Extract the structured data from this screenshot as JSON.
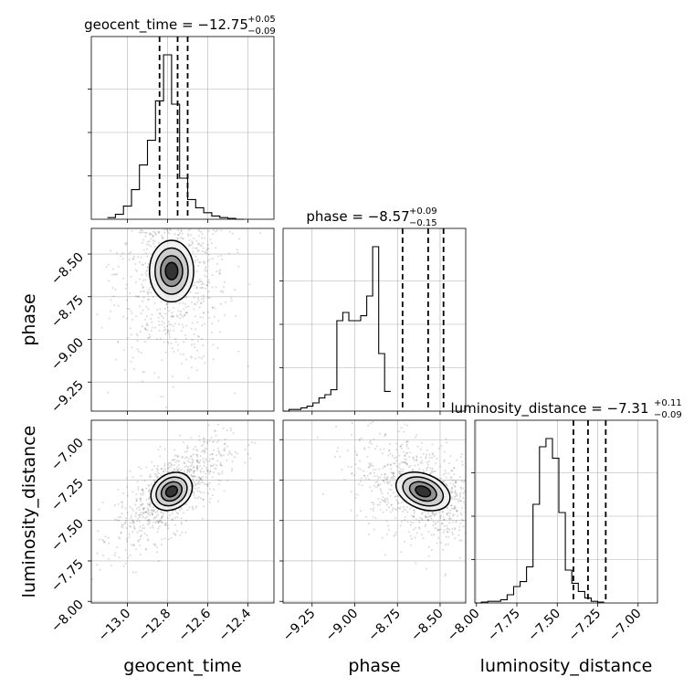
{
  "chart_data": {
    "type": "corner",
    "parameters": [
      "geocent_time",
      "phase",
      "luminosity_distance"
    ],
    "titles": [
      {
        "param": "geocent_time",
        "prefix": "geocent_time = −12.75",
        "plus": "+0.05",
        "minus": "−0.09"
      },
      {
        "param": "phase",
        "prefix": "phase = −8.57",
        "plus": "+0.09",
        "minus": "−0.15"
      },
      {
        "param": "luminosity_distance",
        "prefix": "luminosity_distance = −7.31",
        "plus": "+0.11",
        "minus": "−0.09"
      }
    ],
    "axes": {
      "geocent_time": {
        "range": [
          -13.18,
          -12.27
        ],
        "ticks": [
          -13.0,
          -12.8,
          -12.6,
          -12.4
        ],
        "tick_labels": [
          "−13.0",
          "−12.8",
          "−12.6",
          "−12.4"
        ]
      },
      "phase": {
        "range": [
          -9.42,
          -8.35
        ],
        "ticks": [
          -9.25,
          -9.0,
          -8.75,
          -8.5
        ],
        "tick_labels": [
          "−9.25",
          "−9.00",
          "−8.75",
          "−8.50"
        ]
      },
      "luminosity_distance": {
        "range": [
          -8.01,
          -6.88
        ],
        "ticks": [
          -8.0,
          -7.75,
          -7.5,
          -7.25,
          -7.0
        ],
        "tick_labels": [
          "−8.00",
          "−7.75",
          "−7.50",
          "−7.25",
          "−7.00"
        ]
      }
    },
    "histograms": {
      "geocent_time": {
        "edges_start": -13.1,
        "bin_width": 0.04,
        "counts": [
          0.01,
          0.03,
          0.08,
          0.18,
          0.33,
          0.48,
          0.72,
          1.0,
          0.7,
          0.25,
          0.12,
          0.07,
          0.04,
          0.02,
          0.01,
          0.005,
          0
        ],
        "quantiles": [
          -12.84,
          -12.75,
          -12.7
        ]
      },
      "phase": {
        "edges_start": -9.42,
        "bin_width": 0.035,
        "counts": [
          0,
          0.01,
          0.01,
          0.02,
          0.03,
          0.05,
          0.08,
          0.1,
          0.13,
          0.55,
          0.6,
          0.55,
          0.55,
          0.58,
          0.7,
          1.0,
          0.35,
          0.12
        ],
        "quantiles": [
          -8.72,
          -8.57,
          -8.48
        ]
      },
      "luminosity_distance": {
        "edges_start": -8.01,
        "bin_width": 0.04,
        "counts": [
          0,
          0.005,
          0.01,
          0.01,
          0.02,
          0.05,
          0.1,
          0.13,
          0.22,
          0.6,
          0.95,
          1.0,
          0.88,
          0.55,
          0.2,
          0.12,
          0.07,
          0.03,
          0.01,
          0.005
        ],
        "quantiles": [
          -7.4,
          -7.31,
          -7.2
        ]
      }
    },
    "scatter_2d": [
      {
        "x": "geocent_time",
        "y": "phase",
        "center": [
          -12.78,
          -8.6
        ],
        "spread": [
          0.1,
          0.2
        ],
        "corr": 0.0,
        "contour_levels": 4
      },
      {
        "x": "geocent_time",
        "y": "luminosity_distance",
        "center": [
          -12.78,
          -7.32
        ],
        "spread": [
          0.1,
          0.12
        ],
        "corr": 0.7,
        "contour_levels": 4
      },
      {
        "x": "phase",
        "y": "luminosity_distance",
        "center": [
          -8.6,
          -7.32
        ],
        "spread": [
          0.15,
          0.12
        ],
        "corr": -0.4,
        "contour_levels": 4
      }
    ],
    "grid": true
  }
}
